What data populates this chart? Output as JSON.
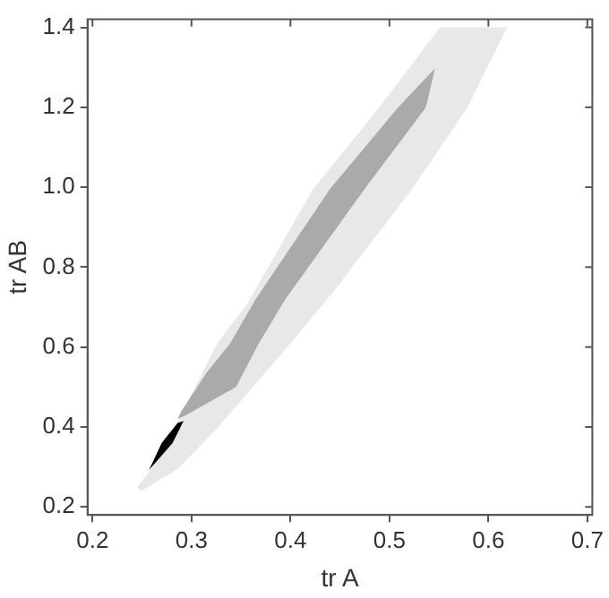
{
  "chart_data": {
    "type": "area",
    "xlabel": "tr A",
    "ylabel": "tr AB",
    "xlim": [
      0.195,
      0.705
    ],
    "ylim": [
      0.18,
      1.42
    ],
    "xticks": [
      0.2,
      0.3,
      0.4,
      0.5,
      0.6,
      0.7
    ],
    "yticks": [
      0.2,
      0.4,
      0.6,
      0.8,
      {
        "value": 1.0,
        "label": "1.0"
      },
      1.2,
      1.4
    ],
    "grid": false,
    "legend": false,
    "series": [
      {
        "color": "#e8e8e8",
        "x": [
          0.249,
          0.286,
          0.325,
          0.4,
          0.447,
          0.523,
          0.579,
          0.619,
          0.551,
          0.49,
          0.423,
          0.356,
          0.326,
          0.282,
          0.26,
          0.245
        ],
        "values": [
          0.239,
          0.295,
          0.394,
          0.609,
          0.75,
          0.996,
          1.2,
          1.4,
          1.4,
          1.2,
          0.996,
          0.707,
          0.609,
          0.394,
          0.295,
          0.25
        ]
      },
      {
        "color": "#aaaaaa",
        "x": [
          0.286,
          0.295,
          0.345,
          0.368,
          0.395,
          0.475,
          0.537,
          0.546,
          0.509,
          0.44,
          0.365,
          0.339,
          0.315,
          0.29
        ],
        "values": [
          0.42,
          0.43,
          0.5,
          0.609,
          0.72,
          0.996,
          1.2,
          1.297,
          1.2,
          0.996,
          0.72,
          0.609,
          0.535,
          0.44
        ]
      },
      {
        "color": "#000000",
        "x": [
          0.257,
          0.281,
          0.292,
          0.286,
          0.27
        ],
        "values": [
          0.292,
          0.36,
          0.415,
          0.41,
          0.36
        ]
      }
    ]
  }
}
